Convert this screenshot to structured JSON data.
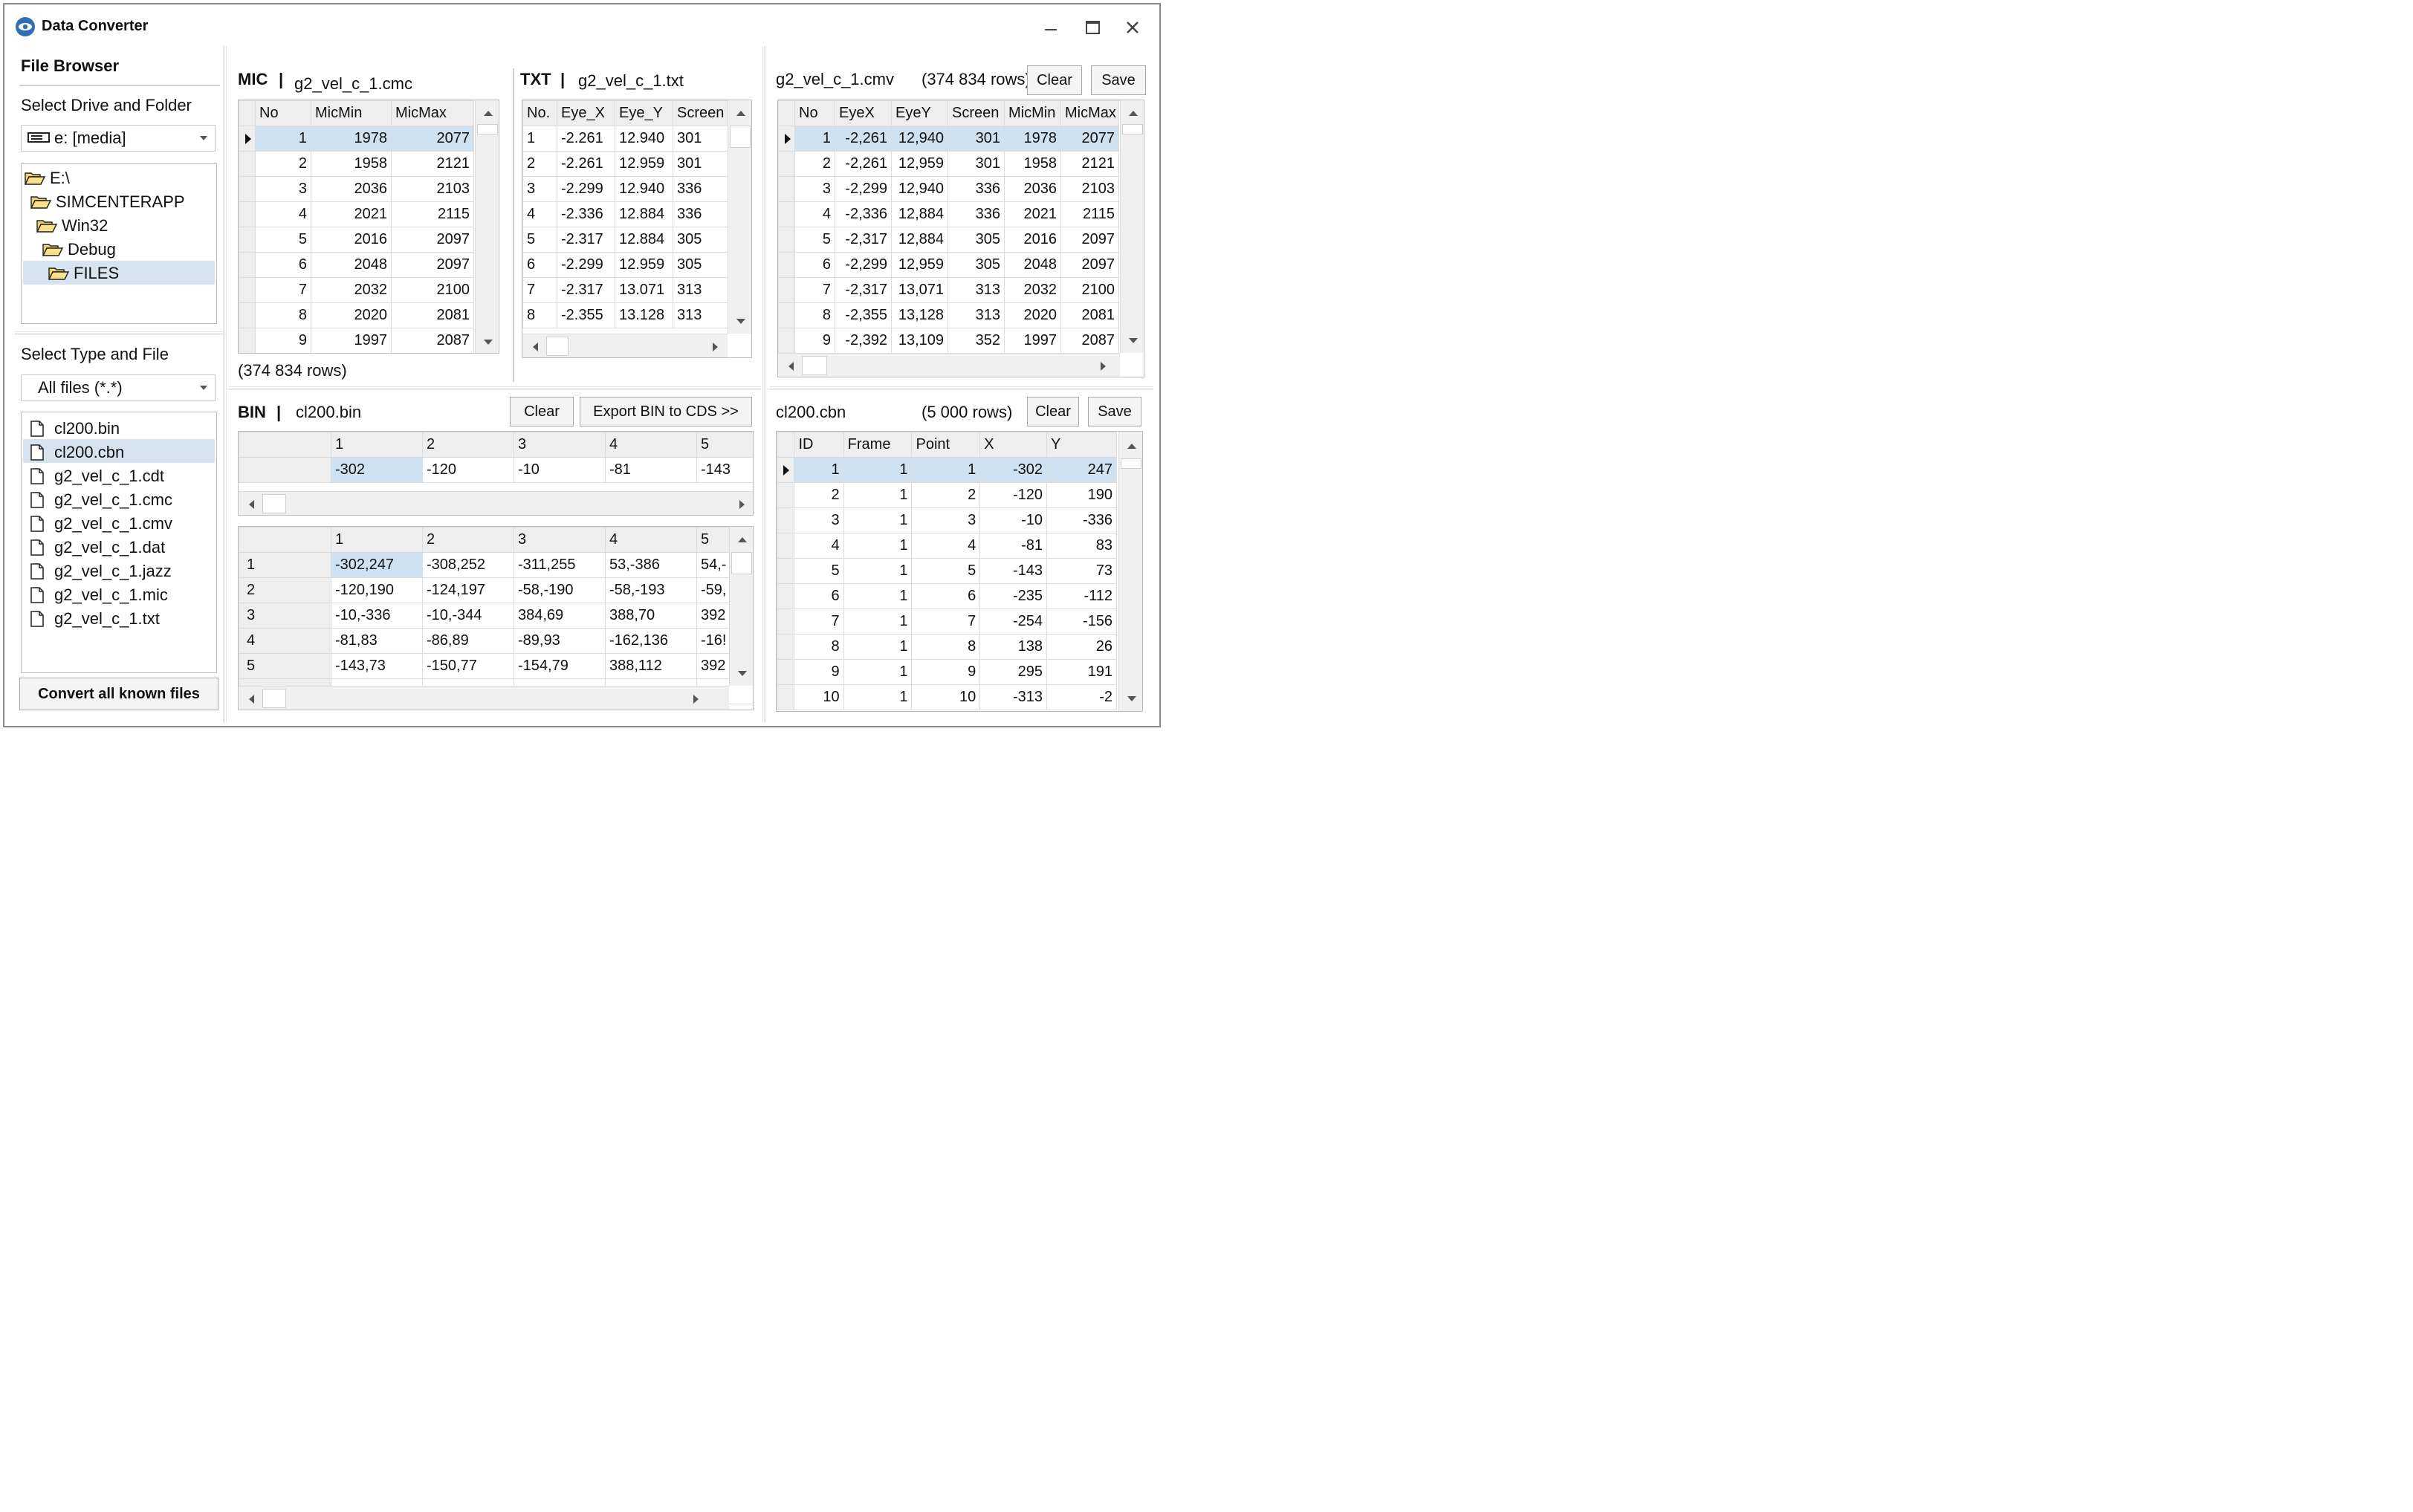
{
  "window": {
    "title": "Data Converter",
    "controls": [
      "minimize",
      "maximize",
      "close"
    ]
  },
  "file_browser": {
    "heading": "File Browser",
    "drive_label": "Select Drive and Folder",
    "drive_value": "e: [media]",
    "folders": [
      "E:\\",
      "SIMCENTERAPP",
      "Win32",
      "Debug",
      "FILES"
    ],
    "selected_folder": "FILES",
    "type_label": "Select Type and File",
    "type_value": "All files (*.*)",
    "files": [
      "cl200.bin",
      "cl200.cbn",
      "g2_vel_c_1.cdt",
      "g2_vel_c_1.cmc",
      "g2_vel_c_1.cmv",
      "g2_vel_c_1.dat",
      "g2_vel_c_1.jazz",
      "g2_vel_c_1.mic",
      "g2_vel_c_1.txt"
    ],
    "selected_file": "cl200.cbn",
    "convert_button": "Convert all known files"
  },
  "mic_panel": {
    "tag": "MIC",
    "sep": "|",
    "filename": "g2_vel_c_1.cmc",
    "columns": [
      "No",
      "MicMin",
      "MicMax"
    ],
    "rows": [
      [
        "1",
        "1978",
        "2077"
      ],
      [
        "2",
        "1958",
        "2121"
      ],
      [
        "3",
        "2036",
        "2103"
      ],
      [
        "4",
        "2021",
        "2115"
      ],
      [
        "5",
        "2016",
        "2097"
      ],
      [
        "6",
        "2048",
        "2097"
      ],
      [
        "7",
        "2032",
        "2100"
      ],
      [
        "8",
        "2020",
        "2081"
      ],
      [
        "9",
        "1997",
        "2087"
      ]
    ],
    "row_count": "(374 834 rows)"
  },
  "txt_panel": {
    "tag": "TXT",
    "sep": "|",
    "filename": "g2_vel_c_1.txt",
    "columns": [
      "No.",
      "Eye_X",
      "Eye_Y",
      "Screen"
    ],
    "rows": [
      [
        "1",
        "-2.261",
        "12.940",
        "301"
      ],
      [
        "2",
        "-2.261",
        "12.959",
        "301"
      ],
      [
        "3",
        "-2.299",
        "12.940",
        "336"
      ],
      [
        "4",
        "-2.336",
        "12.884",
        "336"
      ],
      [
        "5",
        "-2.317",
        "12.884",
        "305"
      ],
      [
        "6",
        "-2.299",
        "12.959",
        "305"
      ],
      [
        "7",
        "-2.317",
        "13.071",
        "313"
      ],
      [
        "8",
        "-2.355",
        "13.128",
        "313"
      ]
    ]
  },
  "cmv_panel": {
    "filename": "g2_vel_c_1.cmv",
    "row_count": "(374 834 rows)",
    "clear_button": "Clear",
    "save_button": "Save",
    "columns": [
      "No",
      "EyeX",
      "EyeY",
      "Screen",
      "MicMin",
      "MicMax"
    ],
    "rows": [
      [
        "1",
        "-2,261",
        "12,940",
        "301",
        "1978",
        "2077"
      ],
      [
        "2",
        "-2,261",
        "12,959",
        "301",
        "1958",
        "2121"
      ],
      [
        "3",
        "-2,299",
        "12,940",
        "336",
        "2036",
        "2103"
      ],
      [
        "4",
        "-2,336",
        "12,884",
        "336",
        "2021",
        "2115"
      ],
      [
        "5",
        "-2,317",
        "12,884",
        "305",
        "2016",
        "2097"
      ],
      [
        "6",
        "-2,299",
        "12,959",
        "305",
        "2048",
        "2097"
      ],
      [
        "7",
        "-2,317",
        "13,071",
        "313",
        "2032",
        "2100"
      ],
      [
        "8",
        "-2,355",
        "13,128",
        "313",
        "2020",
        "2081"
      ],
      [
        "9",
        "-2,392",
        "13,109",
        "352",
        "1997",
        "2087"
      ]
    ]
  },
  "bin_panel": {
    "tag": "BIN",
    "sep": "|",
    "filename": "cl200.bin",
    "clear_button": "Clear",
    "export_button": "Export BIN to CDS >>",
    "top_columns": [
      "1",
      "2",
      "3",
      "4",
      "5"
    ],
    "top_values": [
      "-302",
      "-120",
      "-10",
      "-81",
      "-143"
    ],
    "bottom_columns": [
      "1",
      "2",
      "3",
      "4",
      "5"
    ],
    "bottom_rows": [
      {
        "label": "1",
        "cells": [
          "-302,247",
          "-308,252",
          "-311,255",
          "53,-386",
          "54,-"
        ]
      },
      {
        "label": "2",
        "cells": [
          "-120,190",
          "-124,197",
          "-58,-190",
          "-58,-193",
          "-59,"
        ]
      },
      {
        "label": "3",
        "cells": [
          "-10,-336",
          "-10,-344",
          "384,69",
          "388,70",
          "392"
        ]
      },
      {
        "label": "4",
        "cells": [
          "-81,83",
          "-86,89",
          "-89,93",
          "-162,136",
          "-16!"
        ]
      },
      {
        "label": "5",
        "cells": [
          "-143,73",
          "-150,77",
          "-154,79",
          "388,112",
          "392"
        ]
      }
    ]
  },
  "cbn_panel": {
    "filename": "cl200.cbn",
    "row_count": "(5 000 rows)",
    "clear_button": "Clear",
    "save_button": "Save",
    "columns": [
      "ID",
      "Frame",
      "Point",
      "X",
      "Y"
    ],
    "rows": [
      [
        "1",
        "1",
        "1",
        "-302",
        "247"
      ],
      [
        "2",
        "1",
        "2",
        "-120",
        "190"
      ],
      [
        "3",
        "1",
        "3",
        "-10",
        "-336"
      ],
      [
        "4",
        "1",
        "4",
        "-81",
        "83"
      ],
      [
        "5",
        "1",
        "5",
        "-143",
        "73"
      ],
      [
        "6",
        "1",
        "6",
        "-235",
        "-112"
      ],
      [
        "7",
        "1",
        "7",
        "-254",
        "-156"
      ],
      [
        "8",
        "1",
        "8",
        "138",
        "26"
      ],
      [
        "9",
        "1",
        "9",
        "295",
        "191"
      ],
      [
        "10",
        "1",
        "10",
        "-313",
        "-2"
      ]
    ]
  }
}
